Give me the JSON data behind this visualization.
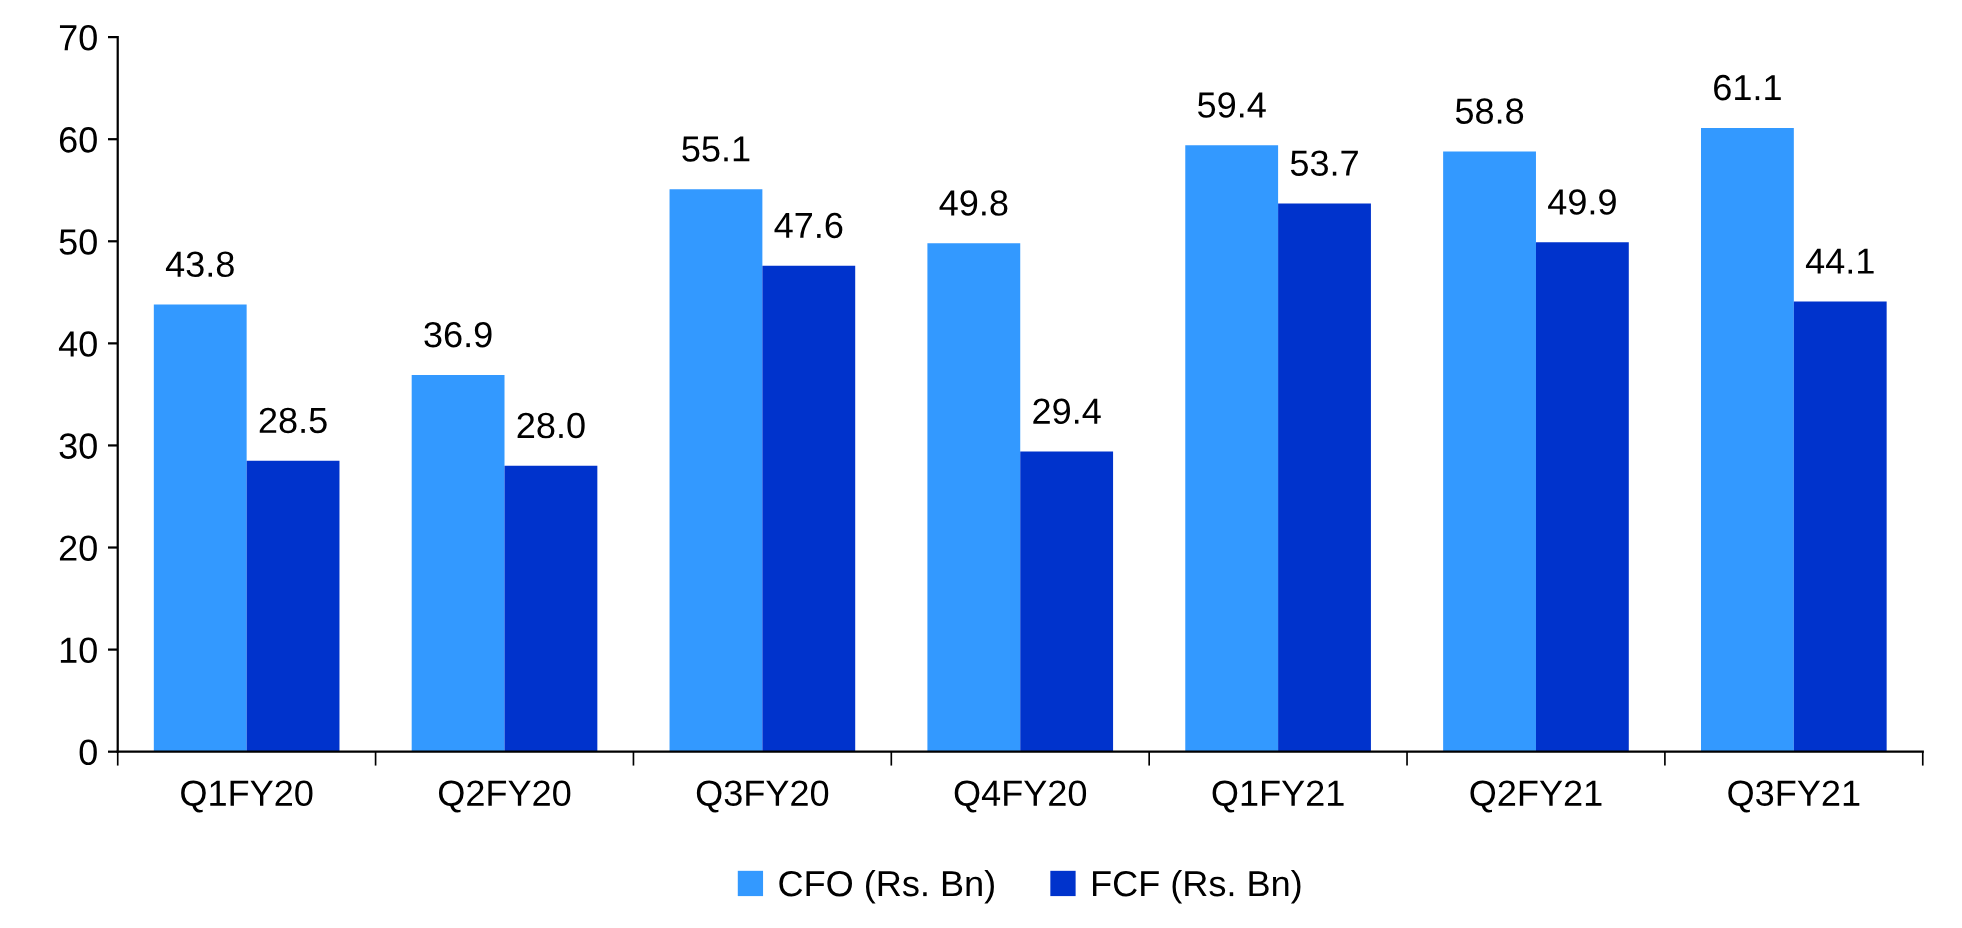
{
  "chart_data": {
    "type": "bar",
    "categories": [
      "Q1FY20",
      "Q2FY20",
      "Q3FY20",
      "Q4FY20",
      "Q1FY21",
      "Q2FY21",
      "Q3FY21"
    ],
    "series": [
      {
        "name": "CFO (Rs. Bn)",
        "color": "#3399ff",
        "values": [
          43.8,
          36.9,
          55.1,
          49.8,
          59.4,
          58.8,
          61.1
        ],
        "value_labels": [
          "43.8",
          "36.9",
          "55.1",
          "49.8",
          "59.4",
          "58.8",
          "61.1"
        ]
      },
      {
        "name": "FCF (Rs. Bn)",
        "color": "#0033cc",
        "values": [
          28.5,
          28.0,
          47.6,
          29.4,
          53.7,
          49.9,
          44.1
        ],
        "value_labels": [
          "28.5",
          "28.0",
          "47.6",
          "29.4",
          "53.7",
          "49.9",
          "44.1"
        ]
      }
    ],
    "ylim": [
      0,
      70
    ],
    "yticks": [
      0,
      10,
      20,
      30,
      40,
      50,
      60,
      70
    ],
    "grid": false,
    "legend": "bottom"
  }
}
